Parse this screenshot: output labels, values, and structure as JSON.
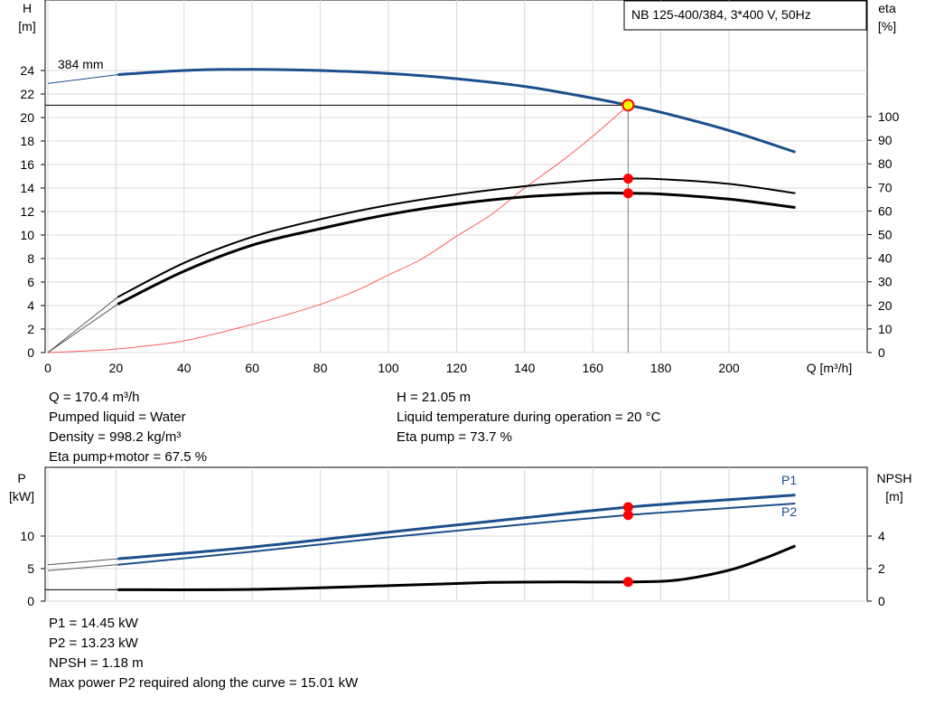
{
  "legend_box": "NB 125-400/384, 3*400 V, 50Hz",
  "info_top_left": [
    "Q = 170.4 m³/h",
    "Pumped liquid = Water",
    "Density = 998.2 kg/m³",
    "Eta pump+motor = 67.5 %"
  ],
  "info_top_right": [
    "H = 21.05 m",
    "Liquid temperature during operation = 20 °C",
    "Eta pump = 73.7 %"
  ],
  "info_bottom": [
    "P1 = 14.45 kW",
    "P2 = 13.23 kW",
    "NPSH = 1.18 m",
    "Max power P2 required along the curve = 15.01 kW"
  ],
  "colors": {
    "head": "#1c4f8b",
    "power": "#1c4f8b",
    "eta": "#000000",
    "system": "#ff5a5a",
    "marker": "#ff0000",
    "duty": "#ffff00"
  },
  "chart_data": [
    {
      "type": "line",
      "axes": {
        "x": {
          "label": "Q [m³/h]",
          "range": [
            0,
            220
          ],
          "ticks": [
            0,
            20,
            40,
            60,
            80,
            100,
            120,
            140,
            160,
            180,
            200
          ]
        },
        "y_left": {
          "label_top": "H",
          "label_unit": "[m]",
          "range": [
            0,
            24
          ],
          "ticks": [
            0,
            2,
            4,
            6,
            8,
            10,
            12,
            14,
            16,
            18,
            20,
            22,
            24
          ]
        },
        "y_right": {
          "label_top": "eta",
          "label_unit": "[%]",
          "range": [
            0,
            100
          ],
          "ticks": [
            0,
            10,
            20,
            30,
            40,
            50,
            60,
            70,
            80,
            90,
            100
          ]
        }
      },
      "annotations": {
        "impeller": "384 mm"
      },
      "duty_point": {
        "q": 170.4,
        "h": 21.05,
        "eta_pump": 73.7,
        "eta_total": 67.5
      },
      "series": [
        {
          "key": "head",
          "axis": "left",
          "points": [
            [
              0,
              22.9
            ],
            [
              20.5,
              23.65
            ],
            [
              40,
              24.0
            ],
            [
              60,
              24.1
            ],
            [
              80,
              24.0
            ],
            [
              100,
              23.75
            ],
            [
              120,
              23.3
            ],
            [
              140,
              22.65
            ],
            [
              160,
              21.65
            ],
            [
              170.4,
              21.05
            ],
            [
              180,
              20.45
            ],
            [
              200,
              18.9
            ],
            [
              219.5,
              17.05
            ]
          ]
        },
        {
          "key": "eta_pump",
          "axis": "right",
          "points": [
            [
              0,
              0
            ],
            [
              20.5,
              23.5
            ],
            [
              40,
              38
            ],
            [
              60,
              49
            ],
            [
              80,
              56.5
            ],
            [
              100,
              62.5
            ],
            [
              120,
              67
            ],
            [
              140,
              70.5
            ],
            [
              160,
              73
            ],
            [
              170.4,
              73.7
            ],
            [
              180,
              73.5
            ],
            [
              200,
              71.5
            ],
            [
              219.5,
              67.5
            ]
          ]
        },
        {
          "key": "eta_total",
          "axis": "right",
          "points": [
            [
              0,
              0
            ],
            [
              20.5,
              20.5
            ],
            [
              40,
              34.5
            ],
            [
              60,
              45.5
            ],
            [
              80,
              52.5
            ],
            [
              100,
              58.5
            ],
            [
              120,
              63
            ],
            [
              140,
              66
            ],
            [
              160,
              67.5
            ],
            [
              170.4,
              67.5
            ],
            [
              180,
              67.2
            ],
            [
              200,
              65
            ],
            [
              219.5,
              61.5
            ]
          ]
        },
        {
          "key": "system",
          "axis": "left",
          "points": [
            [
              0,
              0
            ],
            [
              20,
              0.3
            ],
            [
              40,
              1.0
            ],
            [
              60,
              2.4
            ],
            [
              70,
              3.2
            ],
            [
              80,
              4.1
            ],
            [
              90,
              5.2
            ],
            [
              100,
              6.6
            ],
            [
              110,
              8.0
            ],
            [
              120,
              9.9
            ],
            [
              130,
              11.7
            ],
            [
              140,
              14.0
            ],
            [
              150,
              16.1
            ],
            [
              160,
              18.4
            ],
            [
              170.4,
              21.05
            ]
          ]
        }
      ]
    },
    {
      "type": "line",
      "axes": {
        "x": {
          "range": [
            0,
            220
          ]
        },
        "y_left": {
          "label_top": "P",
          "label_unit": "[kW]",
          "range": [
            0,
            18
          ],
          "ticks": [
            0,
            5,
            10
          ]
        },
        "y_right": {
          "label_top": "NPSH",
          "label_unit": "[m]",
          "range": [
            0,
            8
          ],
          "ticks": [
            0,
            2,
            4
          ]
        }
      },
      "duty_point": {
        "q": 170.4,
        "p1": 14.45,
        "p2": 13.23,
        "npsh": 1.18
      },
      "series": [
        {
          "key": "p1",
          "name": "P1",
          "axis": "left",
          "points": [
            [
              0,
              5.6
            ],
            [
              20.5,
              6.5
            ],
            [
              60,
              8.3
            ],
            [
              100,
              10.6
            ],
            [
              140,
              12.8
            ],
            [
              170.4,
              14.45
            ],
            [
              200,
              15.6
            ],
            [
              219.5,
              16.3
            ]
          ]
        },
        {
          "key": "p2",
          "name": "P2",
          "axis": "left",
          "points": [
            [
              0,
              4.7
            ],
            [
              20.5,
              5.6
            ],
            [
              60,
              7.6
            ],
            [
              100,
              9.8
            ],
            [
              140,
              11.8
            ],
            [
              170.4,
              13.23
            ],
            [
              200,
              14.3
            ],
            [
              219.5,
              15.0
            ]
          ]
        },
        {
          "key": "npsh",
          "axis": "right",
          "points": [
            [
              0,
              0.7
            ],
            [
              20.5,
              0.7
            ],
            [
              60,
              0.72
            ],
            [
              100,
              0.95
            ],
            [
              130,
              1.15
            ],
            [
              150,
              1.18
            ],
            [
              170.4,
              1.18
            ],
            [
              185,
              1.3
            ],
            [
              200,
              1.9
            ],
            [
              210,
              2.6
            ],
            [
              219.5,
              3.4
            ]
          ]
        }
      ]
    }
  ]
}
